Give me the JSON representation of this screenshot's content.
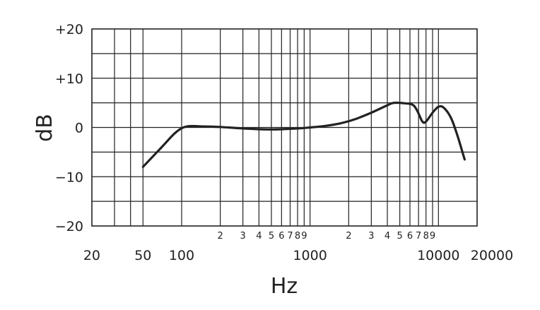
{
  "chart_data": {
    "type": "line",
    "xlabel": "Hz",
    "ylabel": "dB",
    "xscale": "log",
    "xlim": [
      20,
      20000
    ],
    "ylim": [
      -20,
      20
    ],
    "grid": true,
    "y_ticks": [
      {
        "value": 20,
        "label": "+20"
      },
      {
        "value": 10,
        "label": "+10"
      },
      {
        "value": 0,
        "label": "0"
      },
      {
        "value": -10,
        "label": "−10"
      },
      {
        "value": -20,
        "label": "−20"
      }
    ],
    "x_major_ticks": [
      {
        "value": 20,
        "label": "20"
      },
      {
        "value": 50,
        "label": "50"
      },
      {
        "value": 100,
        "label": "100"
      },
      {
        "value": 1000,
        "label": "1000"
      },
      {
        "value": 10000,
        "label": "10000"
      },
      {
        "value": 20000,
        "label": "20000"
      }
    ],
    "x_minor_ticks": [
      {
        "value": 200,
        "label": "2"
      },
      {
        "value": 300,
        "label": "3"
      },
      {
        "value": 400,
        "label": "4"
      },
      {
        "value": 500,
        "label": "5"
      },
      {
        "value": 600,
        "label": "6"
      },
      {
        "value": 700,
        "label": "7"
      },
      {
        "value": 800,
        "label": "8"
      },
      {
        "value": 900,
        "label": "9"
      },
      {
        "value": 2000,
        "label": "2"
      },
      {
        "value": 3000,
        "label": "3"
      },
      {
        "value": 4000,
        "label": "4"
      },
      {
        "value": 5000,
        "label": "5"
      },
      {
        "value": 6000,
        "label": "6"
      },
      {
        "value": 7000,
        "label": "7"
      },
      {
        "value": 8000,
        "label": "8"
      },
      {
        "value": 9000,
        "label": "9"
      }
    ],
    "x_grid": [
      30,
      40,
      50,
      100,
      200,
      300,
      400,
      500,
      600,
      700,
      800,
      900,
      1000,
      2000,
      3000,
      4000,
      5000,
      6000,
      7000,
      8000,
      9000,
      10000
    ],
    "y_grid": [
      -15,
      -10,
      -5,
      0,
      5,
      10,
      15
    ],
    "series": [
      {
        "values": [
          [
            50,
            -8
          ],
          [
            70,
            -4
          ],
          [
            90,
            -1
          ],
          [
            110,
            0.2
          ],
          [
            150,
            0.2
          ],
          [
            200,
            0.1
          ],
          [
            300,
            -0.2
          ],
          [
            500,
            -0.4
          ],
          [
            800,
            -0.2
          ],
          [
            1000,
            0
          ],
          [
            1300,
            0.3
          ],
          [
            1700,
            0.8
          ],
          [
            2200,
            1.6
          ],
          [
            3000,
            3
          ],
          [
            4000,
            4.5
          ],
          [
            4500,
            5
          ],
          [
            5500,
            4.9
          ],
          [
            6300,
            4.6
          ],
          [
            6800,
            3.5
          ],
          [
            7500,
            1.2
          ],
          [
            8000,
            1.2
          ],
          [
            9000,
            3
          ],
          [
            10000,
            4.2
          ],
          [
            11000,
            4
          ],
          [
            12500,
            2
          ],
          [
            14000,
            -1.5
          ],
          [
            16000,
            -6.5
          ]
        ]
      }
    ]
  }
}
